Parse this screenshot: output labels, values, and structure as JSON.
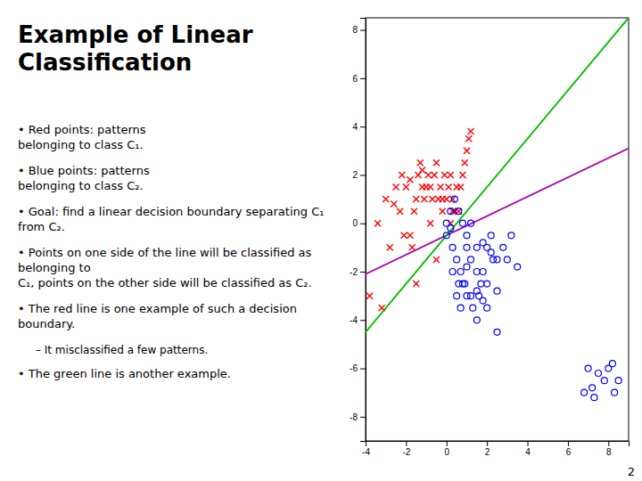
{
  "chart_data": {
    "type": "scatter",
    "title": "Example of Linear\nClassification",
    "annotations": [
      "• Red points: patterns\nbelonging to class C₁.",
      "• Blue points: patterns\nbelonging to class C₂.",
      "• Goal: find a linear decision boundary separating C₁\nfrom C₂.",
      "• Points on one side of the line will be classified as belonging to\nC₁, points on the other side will be classified as C₂.",
      "• The red line is one example of such a decision boundary.",
      "–  It misclassified a few patterns.",
      "• The green line is another example.",
      "2"
    ],
    "xlim": [
      -4,
      9
    ],
    "ylim": [
      -9,
      8.5
    ],
    "xticks": [
      -4,
      -2,
      0,
      2,
      4,
      6,
      8
    ],
    "yticks": [
      -8,
      -6,
      -4,
      -2,
      0,
      2,
      4,
      6,
      8
    ],
    "grid": false,
    "series": [
      {
        "type": "scatter",
        "marker": "x",
        "color": "red",
        "x": [
          -3.8,
          -3.2,
          -3.0,
          -2.5,
          -2.3,
          -2.2,
          -2.0,
          -1.8,
          -1.7,
          -1.6,
          -1.5,
          -1.4,
          -1.3,
          -1.2,
          -1.1,
          -1.0,
          -0.9,
          -0.8,
          -0.7,
          -0.6,
          -0.5,
          -0.4,
          -0.3,
          -0.2,
          -0.1,
          0.0,
          0.1,
          0.2,
          0.3,
          0.4,
          0.5,
          0.6,
          0.7,
          0.8,
          0.9,
          1.0,
          1.1,
          1.2,
          -1.5,
          -3.4,
          -2.8,
          -2.1,
          0.3,
          -0.5,
          -1.2,
          -0.8,
          0.2,
          -0.2,
          -1.8,
          -2.6
        ],
        "values": [
          -3.0,
          -3.5,
          1.0,
          1.5,
          0.5,
          2.0,
          1.5,
          -0.5,
          -1.0,
          0.5,
          1.0,
          2.0,
          2.5,
          1.5,
          1.0,
          1.5,
          2.0,
          1.5,
          1.0,
          2.0,
          2.5,
          1.0,
          1.5,
          0.5,
          2.0,
          1.0,
          1.5,
          2.0,
          1.0,
          0.5,
          1.5,
          0.5,
          1.5,
          2.0,
          2.5,
          3.0,
          3.5,
          3.8,
          -2.5,
          0.0,
          -1.0,
          -0.5,
          0.5,
          -1.5,
          2.2,
          0.0,
          0.0,
          1.0,
          1.8,
          0.8
        ]
      },
      {
        "type": "scatter",
        "marker": "circle",
        "color": "blue",
        "x": [
          0.0,
          0.3,
          0.5,
          0.7,
          0.8,
          1.0,
          1.2,
          1.5,
          1.7,
          2.0,
          2.2,
          2.5,
          0.2,
          0.4,
          0.6,
          0.8,
          1.0,
          1.2,
          1.5,
          1.8,
          2.0,
          2.3,
          2.5,
          0.5,
          0.7,
          1.0,
          1.3,
          1.6,
          2.0,
          0.3,
          0.6,
          0.9,
          1.2,
          1.5,
          1.8,
          7.0,
          7.5,
          8.0,
          8.2,
          8.5,
          7.2,
          7.8,
          6.8,
          7.3,
          8.3,
          2.8,
          3.2,
          0.0,
          0.2,
          1.0,
          1.8,
          2.2,
          3.0,
          1.5,
          2.5,
          3.5
        ],
        "values": [
          -0.5,
          -1.0,
          -1.5,
          -2.0,
          -2.5,
          -1.0,
          -1.5,
          -2.0,
          -2.5,
          -1.0,
          -0.5,
          -1.5,
          0.5,
          1.0,
          0.5,
          0.0,
          -0.5,
          0.0,
          -1.0,
          -2.0,
          -2.5,
          -1.5,
          -2.8,
          -3.0,
          -3.5,
          -3.0,
          -3.5,
          -3.0,
          -3.5,
          -2.0,
          -2.5,
          -2.5,
          -3.0,
          -2.8,
          -3.2,
          -6.0,
          -6.2,
          -6.0,
          -5.8,
          -6.5,
          -6.8,
          -6.5,
          -7.0,
          -7.2,
          -7.0,
          -1.0,
          -0.5,
          0.0,
          -0.2,
          -1.8,
          -0.8,
          -1.2,
          -1.5,
          -4.0,
          -4.5,
          -1.8
        ]
      },
      {
        "type": "line",
        "color": "#aa00aa",
        "x": [
          -4,
          9
        ],
        "values": [
          -2.1,
          3.1
        ]
      },
      {
        "type": "line",
        "color": "#00bb00",
        "x": [
          -4,
          9
        ],
        "values": [
          -4.5,
          8.5
        ]
      }
    ]
  }
}
